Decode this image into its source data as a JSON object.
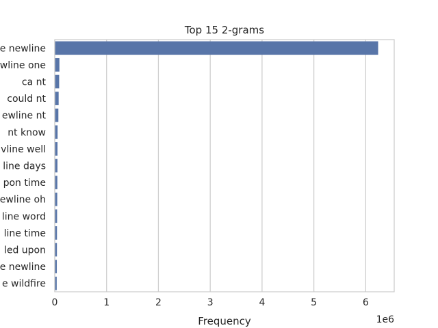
{
  "chart_data": {
    "type": "bar",
    "orientation": "horizontal",
    "title": "Top 15 2-grams",
    "xlabel": "Frequency",
    "ylabel": "",
    "scale_note": "1e6",
    "xlim": [
      0,
      6.55
    ],
    "xticks": [
      0,
      1,
      2,
      3,
      4,
      5,
      6
    ],
    "x_tick_labels": [
      "0",
      "1",
      "2",
      "3",
      "4",
      "5",
      "6"
    ],
    "grid": "vertical",
    "bar_color": "#5875a8",
    "categories": [
      "e newline",
      "wline one",
      "ca nt",
      "could nt",
      "ewline nt",
      "nt know",
      "vline well",
      "line days",
      "pon time",
      "ewline oh",
      "line word",
      "line time",
      "led upon",
      "e newline",
      "e wildfire"
    ],
    "values": [
      6.24,
      0.09,
      0.085,
      0.075,
      0.07,
      0.055,
      0.053,
      0.052,
      0.05,
      0.048,
      0.045,
      0.043,
      0.042,
      0.04,
      0.038
    ]
  }
}
